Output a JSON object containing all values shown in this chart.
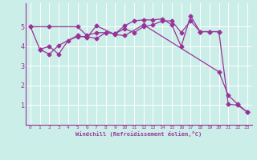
{
  "xlabel": "Windchill (Refroidissement éolien,°C)",
  "background_color": "#cceee8",
  "line_color": "#993399",
  "xlim": [
    -0.5,
    23.5
  ],
  "ylim": [
    0,
    6.2
  ],
  "yticks": [
    1,
    2,
    3,
    4,
    5
  ],
  "xticks": [
    0,
    1,
    2,
    3,
    4,
    5,
    6,
    7,
    8,
    9,
    10,
    11,
    12,
    13,
    14,
    15,
    16,
    17,
    18,
    19,
    20,
    21,
    22,
    23
  ],
  "line1_x": [
    0,
    2,
    5,
    6,
    7,
    8,
    9,
    10,
    11,
    12,
    13,
    14,
    15,
    16,
    17,
    18,
    19,
    20
  ],
  "line1_y": [
    5.0,
    5.0,
    5.0,
    4.55,
    4.7,
    4.7,
    4.65,
    5.05,
    5.3,
    5.35,
    5.35,
    5.4,
    5.1,
    4.0,
    5.55,
    4.75,
    4.75,
    4.75
  ],
  "line2_x": [
    0,
    1,
    2,
    3,
    4,
    5,
    6,
    7,
    8,
    9,
    10,
    11,
    12,
    13,
    14,
    15,
    16,
    17,
    18,
    19,
    20,
    21,
    22,
    23
  ],
  "line2_y": [
    5.0,
    3.85,
    4.0,
    3.6,
    4.3,
    4.5,
    4.5,
    4.4,
    4.7,
    4.65,
    4.9,
    4.7,
    5.0,
    5.1,
    5.3,
    5.3,
    4.7,
    5.3,
    4.75,
    4.75,
    4.75,
    1.05,
    1.0,
    0.65
  ],
  "line3_x": [
    1,
    2,
    3,
    5,
    6,
    7,
    9,
    10,
    12,
    20,
    21,
    22,
    23
  ],
  "line3_y": [
    3.85,
    3.6,
    4.05,
    4.55,
    4.45,
    5.05,
    4.6,
    4.55,
    5.1,
    2.7,
    1.5,
    1.05,
    0.65
  ],
  "marker": "D",
  "markersize": 2.5,
  "linewidth": 0.9
}
